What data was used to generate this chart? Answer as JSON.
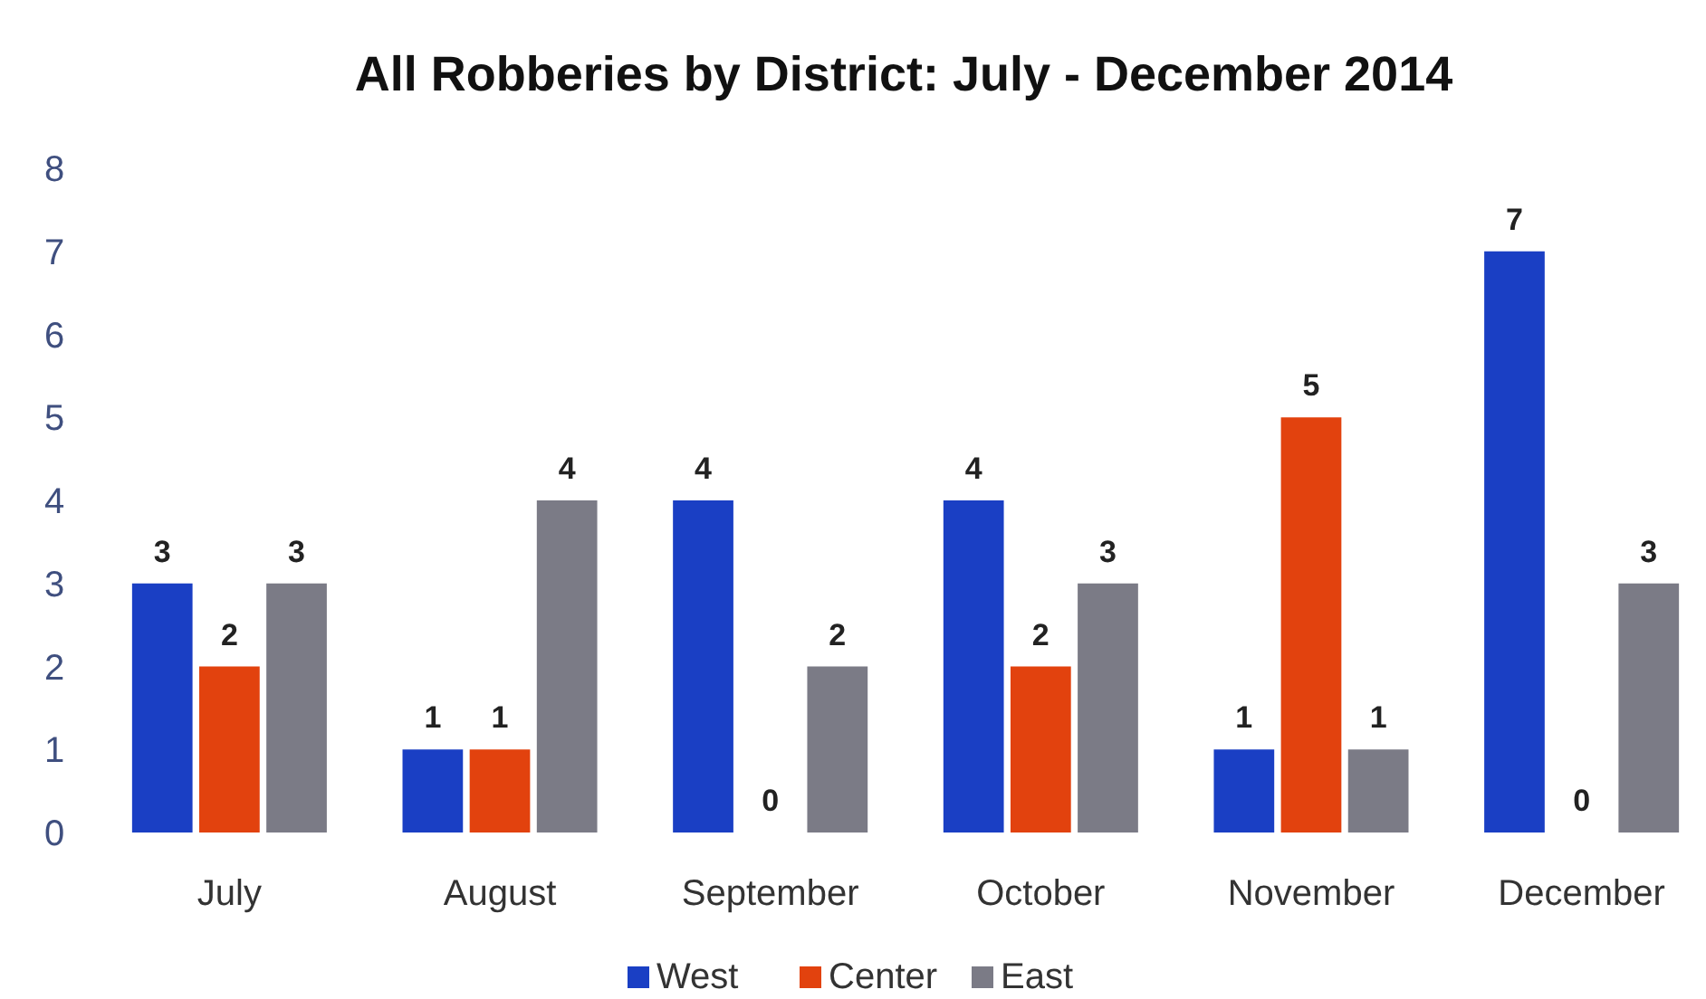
{
  "chart_data": {
    "type": "bar",
    "title": "All Robberies by District: July - December 2014",
    "categories": [
      "July",
      "August",
      "September",
      "October",
      "November",
      "December"
    ],
    "series": [
      {
        "name": "West",
        "color": "#1a3fc4",
        "values": [
          3,
          1,
          4,
          4,
          1,
          7
        ]
      },
      {
        "name": "Center",
        "color": "#e2420e",
        "values": [
          2,
          1,
          0,
          2,
          5,
          0
        ]
      },
      {
        "name": "East",
        "color": "#7b7b86",
        "values": [
          3,
          4,
          2,
          3,
          1,
          3
        ]
      }
    ],
    "ylim": [
      0,
      8
    ],
    "yticks": [
      0,
      1,
      2,
      3,
      4,
      5,
      6,
      7,
      8
    ],
    "grid": false,
    "legend": "bottom",
    "data_labels": true
  }
}
